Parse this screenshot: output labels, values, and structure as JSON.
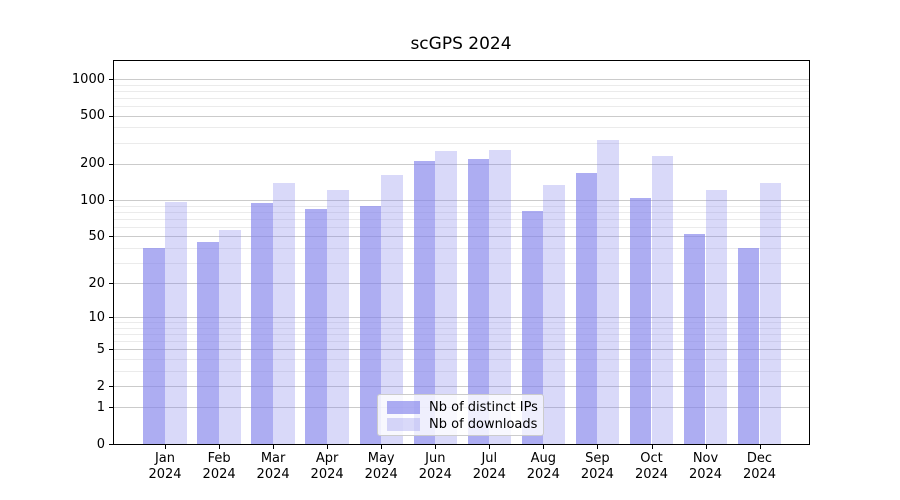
{
  "title": "scGPS 2024",
  "chart_data": {
    "type": "bar",
    "title": "scGPS 2024",
    "year": "2024",
    "categories": [
      "Jan",
      "Feb",
      "Mar",
      "Apr",
      "May",
      "Jun",
      "Jul",
      "Aug",
      "Sep",
      "Oct",
      "Nov",
      "Dec"
    ],
    "series": [
      {
        "name": "Nb of distinct IPs",
        "color": "rgba(130,130,235,0.66)",
        "values": [
          40,
          45,
          94,
          85,
          90,
          210,
          219,
          82,
          167,
          105,
          52,
          40
        ]
      },
      {
        "name": "Nb of downloads",
        "color": "rgba(130,130,235,0.30)",
        "values": [
          97,
          57,
          140,
          122,
          162,
          255,
          258,
          134,
          315,
          232,
          122,
          138
        ]
      }
    ],
    "yscale": "symlog",
    "y_ticks": [
      0,
      1,
      2,
      5,
      10,
      20,
      50,
      100,
      200,
      500,
      1000
    ],
    "y_minor_ticks": [
      3,
      4,
      6,
      7,
      8,
      9,
      30,
      40,
      60,
      70,
      80,
      90,
      300,
      400,
      600,
      700,
      800,
      900
    ],
    "ylim": [
      0,
      1430
    ],
    "grid": "horizontal",
    "legend_position": "lower center",
    "colors": {
      "major_gridline": "#cbcbcb",
      "minor_gridline": "#ebebeb",
      "bar_base": "rgba(130,130,235,1)"
    }
  }
}
